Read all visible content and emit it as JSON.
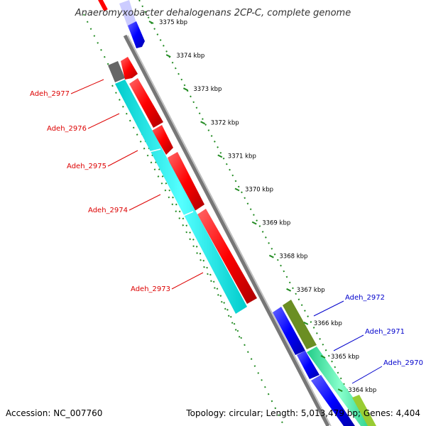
{
  "title": "Anaeromyxobacter dehalogenans 2CP-C, complete genome",
  "accession": "Accession: NC_007760",
  "summary": "Topology: circular; Length: 5,013,479 bp; Genes: 4,404",
  "ticks": [
    "3375 kbp",
    "3374 kbp",
    "3373 kbp",
    "3372 kbp",
    "3371 kbp",
    "3370 kbp",
    "3369 kbp",
    "3368 kbp",
    "3367 kbp",
    "3366 kbp",
    "3365 kbp",
    "3364 kbp"
  ],
  "genes": [
    {
      "label": "Adeh_2977",
      "color": "#dd0000"
    },
    {
      "label": "Adeh_2976",
      "color": "#dd0000"
    },
    {
      "label": "Adeh_2975",
      "color": "#dd0000"
    },
    {
      "label": "Adeh_2974",
      "color": "#dd0000"
    },
    {
      "label": "Adeh_2973",
      "color": "#dd0000"
    },
    {
      "label": "Adeh_2972",
      "color": "#0000cc"
    },
    {
      "label": "Adeh_2971",
      "color": "#0000cc"
    },
    {
      "label": "Adeh_2970",
      "color": "#0000cc"
    }
  ],
  "colors": {
    "forward_cds": "#ff0000",
    "reverse_cds": "#0000ff",
    "cyan_feature": "#00e5e5",
    "green_feature": "#33ee99",
    "olive_feature": "#6b8e23",
    "gray_feature": "#666666",
    "backbone": "#888888",
    "gc_dots": "#228b22"
  }
}
